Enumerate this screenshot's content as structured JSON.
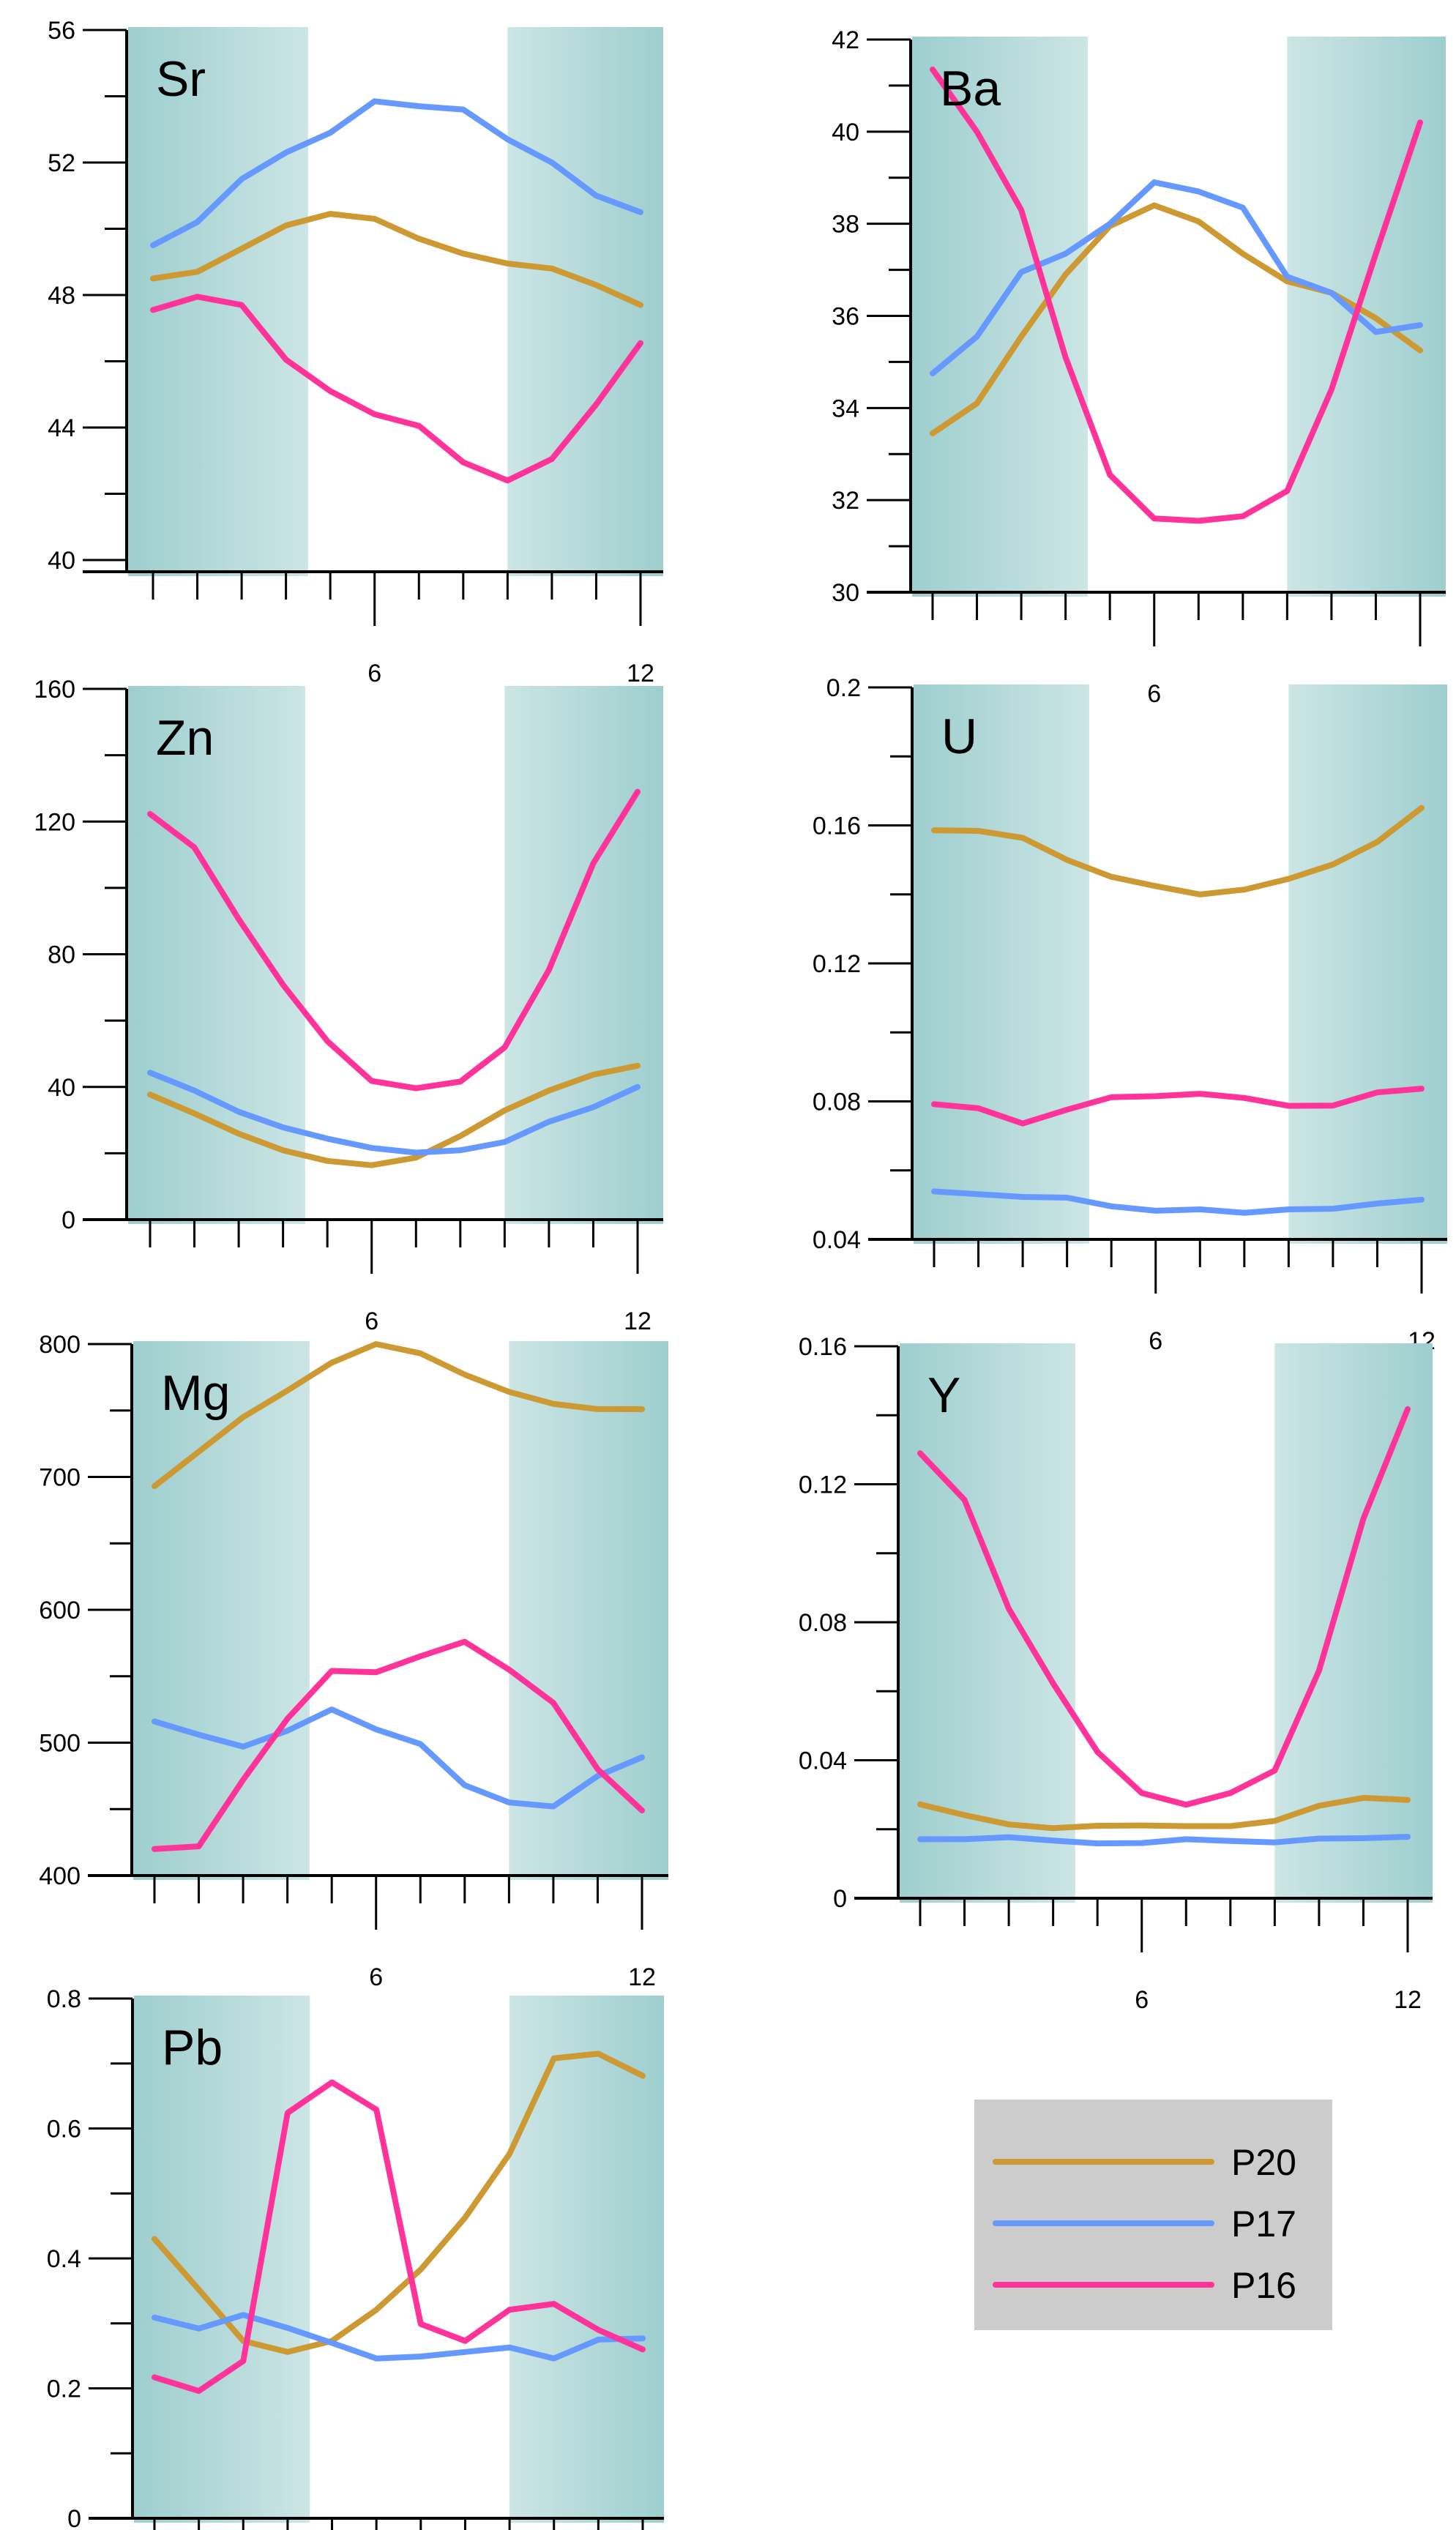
{
  "chart_data": {
    "type": "line",
    "layout": "small-multiples",
    "x": [
      1,
      2,
      3,
      4,
      5,
      6,
      7,
      8,
      9,
      10,
      11,
      12
    ],
    "x_tick_labels": [
      {
        "value": 6,
        "label": "6"
      },
      {
        "value": 12,
        "label": "12"
      }
    ],
    "shaded_x_ranges": [
      [
        0.65,
        4.5
      ],
      [
        9.0,
        12.5
      ]
    ],
    "colors": {
      "P20": "#CC9933",
      "P17": "#6699FF",
      "P16": "#FF3399",
      "shade_dark": "#9ECECE",
      "shade_light": "#CCE5E5",
      "legend_bg": "#CCCCCC"
    },
    "legend": {
      "placement": "bottom-right",
      "entries": [
        {
          "name": "P20",
          "color": "#CC9933"
        },
        {
          "name": "P17",
          "color": "#6699FF"
        },
        {
          "name": "P16",
          "color": "#FF3399"
        }
      ]
    },
    "panels": [
      {
        "title": "Sr",
        "ylim": [
          40,
          56
        ],
        "y_ticks": [
          40,
          42,
          44,
          46,
          48,
          50,
          52,
          54,
          56
        ],
        "y_tick_labels": [
          "40",
          "44",
          "48",
          "52",
          "56"
        ],
        "series": [
          {
            "name": "P20",
            "values": [
              48.5,
              48.7,
              49.4,
              50.1,
              50.45,
              50.3,
              49.7,
              49.25,
              48.95,
              48.8,
              48.3,
              47.7
            ]
          },
          {
            "name": "P17",
            "values": [
              49.5,
              50.2,
              51.5,
              52.3,
              52.9,
              53.85,
              53.7,
              53.6,
              52.7,
              52.0,
              51.0,
              50.5
            ]
          },
          {
            "name": "P16",
            "values": [
              47.55,
              47.95,
              47.7,
              46.05,
              45.1,
              44.4,
              44.05,
              42.95,
              42.4,
              43.05,
              44.7,
              46.55
            ]
          }
        ]
      },
      {
        "title": "Ba",
        "ylim": [
          30,
          42
        ],
        "y_ticks": [
          30,
          31,
          32,
          33,
          34,
          35,
          36,
          37,
          38,
          39,
          40,
          41,
          42
        ],
        "y_tick_labels": [
          "30",
          "32",
          "34",
          "36",
          "38",
          "40",
          "42"
        ],
        "series": [
          {
            "name": "P20",
            "values": [
              33.45,
              34.1,
              35.55,
              36.9,
              37.95,
              38.4,
              38.05,
              37.35,
              36.75,
              36.5,
              35.95,
              35.25
            ]
          },
          {
            "name": "P17",
            "values": [
              34.75,
              35.55,
              36.95,
              37.35,
              38.0,
              38.9,
              38.7,
              38.35,
              36.85,
              36.5,
              35.65,
              35.8
            ]
          },
          {
            "name": "P16",
            "values": [
              41.35,
              40.0,
              38.3,
              35.1,
              32.55,
              31.6,
              31.55,
              31.65,
              32.2,
              34.4,
              37.35,
              40.2
            ]
          }
        ]
      },
      {
        "title": "Zn",
        "ylim": [
          0,
          160
        ],
        "y_ticks": [
          0,
          20,
          40,
          60,
          80,
          100,
          120,
          140,
          160
        ],
        "y_tick_labels": [
          "0",
          "40",
          "80",
          "120",
          "160"
        ],
        "series": [
          {
            "name": "P20",
            "values": [
              37.7,
              32.0,
              25.9,
              20.9,
              17.7,
              16.4,
              18.7,
              25.2,
              32.9,
              38.9,
              43.7,
              46.4
            ]
          },
          {
            "name": "P17",
            "values": [
              44.3,
              38.9,
              32.5,
              27.8,
              24.4,
              21.6,
              20.2,
              20.9,
              23.4,
              29.5,
              33.9,
              40.0
            ]
          },
          {
            "name": "P16",
            "values": [
              122.3,
              112.2,
              90.6,
              70.8,
              53.8,
              41.8,
              39.6,
              41.6,
              51.9,
              75.3,
              107.4,
              129.0
            ]
          }
        ]
      },
      {
        "title": "U",
        "ylim": [
          0.04,
          0.2
        ],
        "y_ticks": [
          0.04,
          0.06,
          0.08,
          0.1,
          0.12,
          0.14,
          0.16,
          0.18,
          0.2
        ],
        "y_tick_labels": [
          "0.04",
          "0.08",
          "0.12",
          "0.16",
          "0.2"
        ],
        "series": [
          {
            "name": "P20",
            "values": [
              0.1586,
              0.1584,
              0.1564,
              0.15,
              0.1451,
              0.1424,
              0.14,
              0.1414,
              0.1445,
              0.1487,
              0.1552,
              0.1651
            ]
          },
          {
            "name": "P17",
            "values": [
              0.0539,
              0.0531,
              0.0523,
              0.0521,
              0.0496,
              0.0483,
              0.0487,
              0.0477,
              0.0487,
              0.0489,
              0.0504,
              0.0515
            ]
          },
          {
            "name": "P16",
            "values": [
              0.0792,
              0.078,
              0.0736,
              0.0776,
              0.0812,
              0.0815,
              0.0822,
              0.081,
              0.0787,
              0.0788,
              0.0826,
              0.0837
            ]
          }
        ]
      },
      {
        "title": "Mg",
        "ylim": [
          400,
          800
        ],
        "y_ticks": [
          400,
          450,
          500,
          550,
          600,
          650,
          700,
          750,
          800
        ],
        "y_tick_labels": [
          "400",
          "500",
          "600",
          "700",
          "800"
        ],
        "series": [
          {
            "name": "P20",
            "values": [
              693,
              719,
              745,
              765,
              786,
              800,
              793,
              777,
              764,
              755,
              751,
              751
            ]
          },
          {
            "name": "P17",
            "values": [
              516,
              506,
              497,
              509,
              525,
              510,
              499,
              468,
              455,
              452,
              475,
              489
            ]
          },
          {
            "name": "P16",
            "values": [
              420,
              422,
              472,
              518,
              554,
              553,
              565,
              576,
              555,
              530,
              480,
              449
            ]
          }
        ]
      },
      {
        "title": "Y",
        "ylim": [
          0,
          0.16
        ],
        "y_ticks": [
          0,
          0.02,
          0.04,
          0.06,
          0.08,
          0.1,
          0.12,
          0.14,
          0.16
        ],
        "y_tick_labels": [
          "0",
          "0.04",
          "0.08",
          "0.12",
          "0.16"
        ],
        "series": [
          {
            "name": "P20",
            "values": [
              0.0272,
              0.0241,
              0.0214,
              0.0203,
              0.021,
              0.0211,
              0.0209,
              0.0209,
              0.0224,
              0.0268,
              0.0291,
              0.0285
            ]
          },
          {
            "name": "P17",
            "values": [
              0.0171,
              0.0171,
              0.0177,
              0.0167,
              0.0159,
              0.016,
              0.0171,
              0.0166,
              0.0162,
              0.0173,
              0.0174,
              0.0178
            ]
          },
          {
            "name": "P16",
            "values": [
              0.129,
              0.1155,
              0.0839,
              0.0623,
              0.0424,
              0.0305,
              0.0271,
              0.0305,
              0.037,
              0.066,
              0.11,
              0.1418
            ]
          }
        ]
      },
      {
        "title": "Pb",
        "ylim": [
          0,
          0.8
        ],
        "y_ticks": [
          0,
          0.1,
          0.2,
          0.3,
          0.4,
          0.5,
          0.6,
          0.7,
          0.8
        ],
        "y_tick_labels": [
          "0",
          "0.2",
          "0.4",
          "0.6",
          "0.8"
        ],
        "series": [
          {
            "name": "P20",
            "values": [
              0.43,
              0.352,
              0.273,
              0.256,
              0.273,
              0.321,
              0.383,
              0.463,
              0.561,
              0.708,
              0.715,
              0.681
            ]
          },
          {
            "name": "P17",
            "values": [
              0.309,
              0.292,
              0.313,
              0.293,
              0.27,
              0.246,
              0.249,
              0.256,
              0.263,
              0.246,
              0.275,
              0.277
            ]
          },
          {
            "name": "P16",
            "values": [
              0.217,
              0.196,
              0.242,
              0.624,
              0.671,
              0.629,
              0.299,
              0.273,
              0.321,
              0.33,
              0.29,
              0.26
            ]
          }
        ]
      }
    ]
  }
}
